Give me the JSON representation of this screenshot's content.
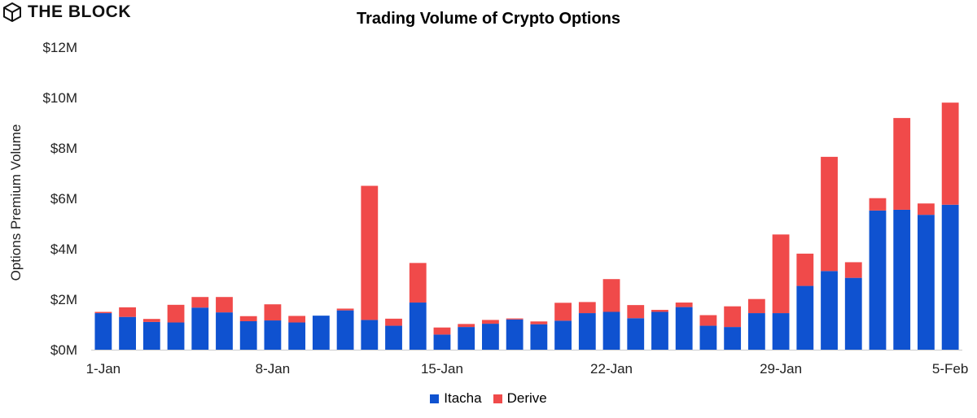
{
  "brand": {
    "name": "THE BLOCK",
    "icon": "cube-logo-icon"
  },
  "chart_data": {
    "type": "bar",
    "stacked": true,
    "title": "Trading Volume of Crypto Options",
    "xlabel": "",
    "ylabel": "Options Premium Volume",
    "ylim": [
      0,
      12000000
    ],
    "yticks": [
      0,
      2000000,
      4000000,
      6000000,
      8000000,
      10000000,
      12000000
    ],
    "ytick_labels": [
      "$0M",
      "$2M",
      "$4M",
      "$6M",
      "$8M",
      "$10M",
      "$12M"
    ],
    "xtick_labels": [
      {
        "index": 0,
        "label": "1-Jan"
      },
      {
        "index": 7,
        "label": "8-Jan"
      },
      {
        "index": 14,
        "label": "15-Jan"
      },
      {
        "index": 21,
        "label": "22-Jan"
      },
      {
        "index": 28,
        "label": "29-Jan"
      },
      {
        "index": 35,
        "label": "5-Feb"
      }
    ],
    "categories": [
      "1-Jan",
      "2-Jan",
      "3-Jan",
      "4-Jan",
      "5-Jan",
      "6-Jan",
      "7-Jan",
      "8-Jan",
      "9-Jan",
      "10-Jan",
      "11-Jan",
      "12-Jan",
      "13-Jan",
      "14-Jan",
      "15-Jan",
      "16-Jan",
      "17-Jan",
      "18-Jan",
      "19-Jan",
      "20-Jan",
      "21-Jan",
      "22-Jan",
      "23-Jan",
      "24-Jan",
      "25-Jan",
      "26-Jan",
      "27-Jan",
      "28-Jan",
      "29-Jan",
      "30-Jan",
      "31-Jan",
      "1-Feb",
      "2-Feb",
      "3-Feb",
      "4-Feb",
      "5-Feb"
    ],
    "grid": false,
    "legend_position": "bottom-center",
    "series": [
      {
        "name": "Itacha",
        "color": "#0f52d0",
        "values": [
          1450000,
          1300000,
          1100000,
          1080000,
          1670000,
          1480000,
          1130000,
          1160000,
          1080000,
          1350000,
          1560000,
          1180000,
          950000,
          1870000,
          600000,
          900000,
          1030000,
          1200000,
          1010000,
          1150000,
          1450000,
          1500000,
          1250000,
          1500000,
          1690000,
          950000,
          900000,
          1450000,
          1450000,
          2530000,
          3120000,
          2850000,
          5520000,
          5550000,
          5350000,
          5750000
        ]
      },
      {
        "name": "Derive",
        "color": "#f04a4a",
        "values": [
          50000,
          380000,
          120000,
          700000,
          420000,
          610000,
          200000,
          640000,
          260000,
          0,
          70000,
          5320000,
          280000,
          1570000,
          280000,
          120000,
          150000,
          40000,
          110000,
          710000,
          440000,
          1300000,
          520000,
          80000,
          180000,
          420000,
          820000,
          560000,
          3120000,
          1280000,
          4530000,
          620000,
          490000,
          3640000,
          450000,
          4050000
        ]
      }
    ]
  }
}
